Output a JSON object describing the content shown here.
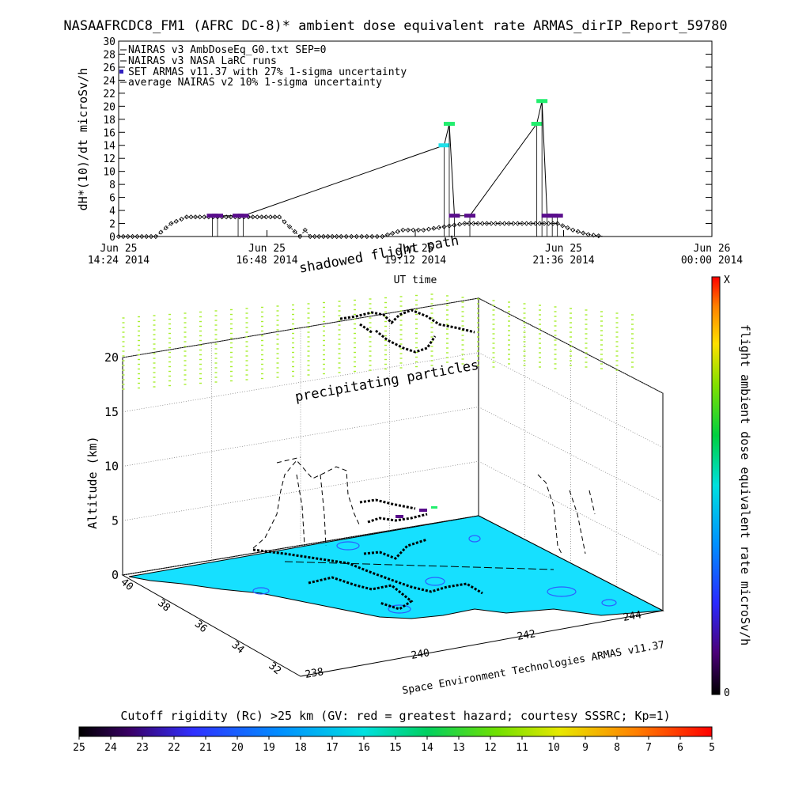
{
  "title": "NASAAFRCDC8_FM1 (AFRC DC-8)* ambient dose equivalent rate ARMAS_dirIP_Report_59780",
  "top_chart": {
    "ylabel": "dH*(10)/dt microSv/h",
    "xlabel": "UT time",
    "y_ticks": [
      "0",
      "2",
      "4",
      "6",
      "8",
      "10",
      "12",
      "14",
      "16",
      "18",
      "20",
      "22",
      "24",
      "26",
      "28",
      "30"
    ],
    "x_ticks": [
      {
        "l1": "Jun 25",
        "l2": "14:24 2014"
      },
      {
        "l1": "Jun 25",
        "l2": "16:48 2014"
      },
      {
        "l1": "Jun 25",
        "l2": "19:12 2014"
      },
      {
        "l1": "Jun 25",
        "l2": "21:36 2014"
      },
      {
        "l1": "Jun 26",
        "l2": "00:00 2014"
      }
    ],
    "legend": [
      "NAIRAS v3 AmbDoseEq_G0.txt SEP=0",
      "NAIRAS v3 NASA LaRC runs",
      "SET ARMAS v11.37 with 27% 1-sigma uncertainty",
      "average NAIRAS v2 10% 1-sigma uncertainty"
    ]
  },
  "chart_data": [
    {
      "type": "line",
      "title": "NASAAFRCDC8_FM1 (AFRC DC-8)* ambient dose equivalent rate ARMAS_dirIP_Report_59780",
      "xlabel": "UT time",
      "ylabel": "dH*(10)/dt microSv/h",
      "ylim": [
        0,
        30
      ],
      "xlim": [
        "2014-06-25 14:24",
        "2014-06-26 00:00"
      ],
      "series": [
        {
          "name": "NAIRAS v3 AmbDoseEq_G0.txt SEP=0",
          "x": [
            "14:24",
            "15:00",
            "15:15",
            "15:30",
            "16:00",
            "16:30",
            "17:00",
            "17:10",
            "17:20",
            "17:25",
            "17:30",
            "18:00",
            "18:20",
            "18:40",
            "19:00",
            "19:20",
            "19:40",
            "20:00",
            "20:30",
            "21:00",
            "21:30",
            "21:45",
            "22:00",
            "22:15"
          ],
          "values": [
            0.0,
            0.0,
            2.0,
            3.0,
            3.0,
            3.0,
            3.0,
            1.5,
            0.0,
            1.0,
            0.0,
            0.0,
            0.0,
            0.0,
            1.0,
            1.0,
            1.5,
            2.0,
            2.0,
            2.0,
            2.0,
            1.0,
            0.3,
            0.0
          ]
        },
        {
          "name": "SET ARMAS v11.37 with 27% 1-sigma uncertainty",
          "x": [
            "15:55",
            "16:00",
            "16:20",
            "16:25",
            "19:40",
            "19:45",
            "19:50",
            "20:05",
            "21:10",
            "21:15",
            "21:20",
            "21:25",
            "21:30"
          ],
          "values": [
            3.2,
            3.2,
            3.2,
            3.2,
            14.0,
            17.3,
            3.2,
            3.2,
            17.3,
            20.8,
            3.2,
            3.2,
            3.2
          ]
        }
      ],
      "colors": {
        "armas_low": "#5a0e8c",
        "armas_mid": "#1fe0e8",
        "armas_high": "#22ee6e"
      }
    }
  ],
  "panel3d": {
    "zlabel": "Altitude (km)",
    "z_ticks": [
      "0",
      "5",
      "10",
      "15",
      "20"
    ],
    "y_ticks": [
      "40",
      "38",
      "36",
      "34",
      "32"
    ],
    "x_ticks": [
      "238",
      "240",
      "242",
      "244"
    ],
    "labels": {
      "shadowed": "shadowed flight path",
      "precip": "precipitating particles",
      "credit": "Space Environment Technologies ARMAS v11.37"
    },
    "colors": {
      "surface": "#16e0ff",
      "precip": "#a8ee30"
    }
  },
  "colorbar_right": {
    "label": "flight ambient dose equivalent rate microSv/h",
    "top": "X",
    "bottom": "0"
  },
  "colorbar_bottom": {
    "label": "Cutoff rigidity (Rc) >25 km (GV: red = greatest hazard; courtesy SSSRC; Kp=1)",
    "ticks": [
      "25",
      "24",
      "23",
      "22",
      "21",
      "20",
      "19",
      "18",
      "17",
      "16",
      "15",
      "14",
      "13",
      "12",
      "11",
      "10",
      "9",
      "8",
      "7",
      "6",
      "5"
    ]
  }
}
